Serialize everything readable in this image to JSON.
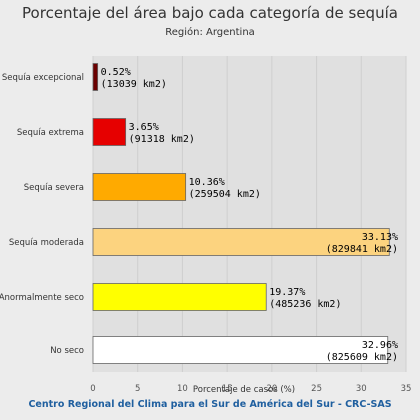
{
  "chart_data": {
    "type": "bar",
    "orientation": "horizontal",
    "title": "Porcentaje del área bajo cada categoría de sequía",
    "subtitle": "Región: Argentina",
    "xlabel": "Porcentaje de casos (%)",
    "ylabel": "",
    "xlim": [
      0,
      35
    ],
    "x_ticks": [
      "0",
      "5",
      "10",
      "15",
      "20",
      "25",
      "30",
      "35"
    ],
    "grid": true,
    "legend": "none",
    "categories": [
      "Sequía excepcional",
      "Sequía extrema",
      "Sequía severa",
      "Sequía moderada",
      "Anormalmente seco",
      "No seco"
    ],
    "values": [
      0.52,
      3.65,
      10.36,
      33.13,
      19.37,
      32.96
    ],
    "value_labels": [
      "0.52%",
      "3.65%",
      "10.36%",
      "33.13%",
      "19.37%",
      "32.96%"
    ],
    "area_labels": [
      "(13039 km2)",
      "(91318 km2)",
      "(259504 km2)",
      "(829841 km2)",
      "(485236 km2)",
      "(825609 km2)"
    ],
    "colors": [
      "#6b0000",
      "#e60000",
      "#ffaa00",
      "#fcd37f",
      "#ffff00",
      "#ffffff"
    ]
  },
  "credits": "Centro Regional del Clima para el Sur de América del Sur - CRC-SAS"
}
